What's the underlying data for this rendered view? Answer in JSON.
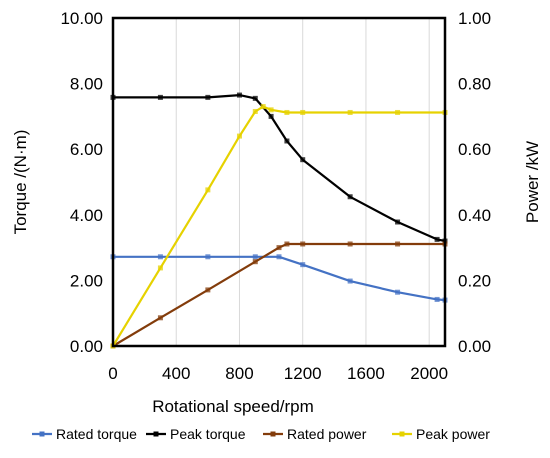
{
  "chart_data": {
    "type": "line",
    "xlabel": "Rotational speed/rpm",
    "ylabel_left": "Torque  /(N·m)",
    "ylabel_right": "Power /kW",
    "xlim": [
      0,
      2100
    ],
    "x_ticks": [
      "0",
      "400",
      "800",
      "1200",
      "1600",
      "2000"
    ],
    "ylim_left": [
      0,
      10
    ],
    "y_ticks_left": [
      "0.00",
      "2.00",
      "4.00",
      "6.00",
      "8.00",
      "10.00"
    ],
    "ylim_right": [
      0,
      1
    ],
    "y_ticks_right": [
      "0.00",
      "0.20",
      "0.40",
      "0.60",
      "0.80",
      "1.00"
    ],
    "grid": "vertical",
    "legend_position": "bottom",
    "series": [
      {
        "name": "Rated torque",
        "axis": "left",
        "color": "#4472c4",
        "marker": "square",
        "points": [
          [
            0,
            2.72
          ],
          [
            300,
            2.72
          ],
          [
            600,
            2.72
          ],
          [
            900,
            2.72
          ],
          [
            1050,
            2.72
          ],
          [
            1200,
            2.48
          ],
          [
            1500,
            1.98
          ],
          [
            1800,
            1.64
          ],
          [
            2050,
            1.42
          ],
          [
            2100,
            1.4
          ]
        ]
      },
      {
        "name": "Peak torque",
        "axis": "left",
        "color": "#000000",
        "marker": "square",
        "points": [
          [
            0,
            7.58
          ],
          [
            300,
            7.58
          ],
          [
            600,
            7.58
          ],
          [
            800,
            7.65
          ],
          [
            900,
            7.55
          ],
          [
            1000,
            7.0
          ],
          [
            1100,
            6.25
          ],
          [
            1200,
            5.68
          ],
          [
            1500,
            4.55
          ],
          [
            1800,
            3.78
          ],
          [
            2050,
            3.25
          ],
          [
            2100,
            3.2
          ]
        ]
      },
      {
        "name": "Rated power",
        "axis": "right",
        "color": "#833c0b",
        "marker": "square",
        "points": [
          [
            0,
            0.0
          ],
          [
            300,
            0.086
          ],
          [
            600,
            0.171
          ],
          [
            900,
            0.257
          ],
          [
            1050,
            0.3
          ],
          [
            1100,
            0.311
          ],
          [
            1200,
            0.311
          ],
          [
            1500,
            0.311
          ],
          [
            1800,
            0.311
          ],
          [
            2100,
            0.311
          ]
        ]
      },
      {
        "name": "Peak power",
        "axis": "right",
        "color": "#e6d200",
        "marker": "square",
        "points": [
          [
            0,
            0.0
          ],
          [
            300,
            0.238
          ],
          [
            600,
            0.476
          ],
          [
            800,
            0.64
          ],
          [
            900,
            0.715
          ],
          [
            950,
            0.73
          ],
          [
            1000,
            0.72
          ],
          [
            1100,
            0.712
          ],
          [
            1200,
            0.712
          ],
          [
            1500,
            0.712
          ],
          [
            1800,
            0.712
          ],
          [
            2100,
            0.712
          ]
        ]
      }
    ]
  }
}
